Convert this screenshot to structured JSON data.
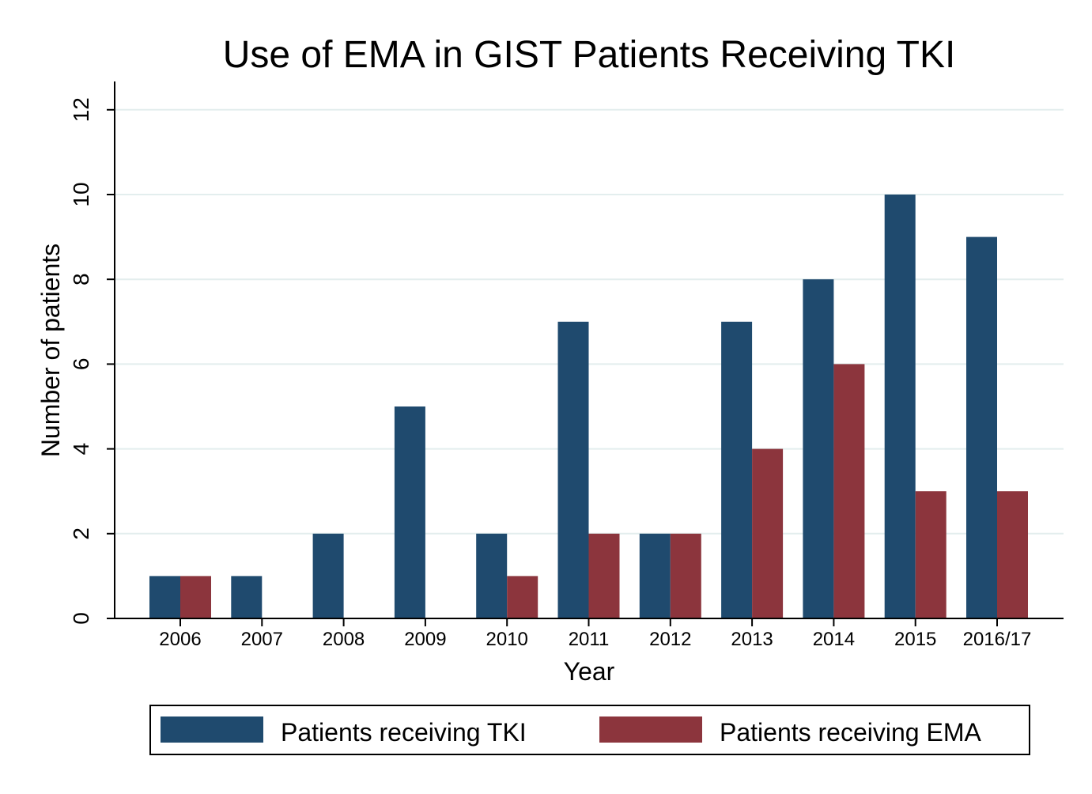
{
  "chart_data": {
    "type": "bar",
    "title": "Use of EMA in GIST Patients Receiving TKI",
    "xlabel": "Year",
    "ylabel": "Number of patients",
    "ylim": [
      0,
      12.5
    ],
    "yticks": [
      "0",
      "2",
      "4",
      "6",
      "8",
      "10",
      "12"
    ],
    "grid": true,
    "legend_position": "bottom",
    "categories": [
      "2006",
      "2007",
      "2008",
      "2009",
      "2010",
      "2011",
      "2012",
      "2013",
      "2014",
      "2015",
      "2016/17"
    ],
    "series": [
      {
        "name": "Patients receiving TKI",
        "color": "#1f4a6e",
        "values": [
          1,
          1,
          2,
          5,
          2,
          7,
          2,
          7,
          8,
          10,
          9
        ]
      },
      {
        "name": "Patients receiving EMA",
        "color": "#8c353d",
        "values": [
          1,
          0,
          0,
          0,
          1,
          2,
          2,
          4,
          6,
          3,
          3
        ]
      }
    ]
  }
}
